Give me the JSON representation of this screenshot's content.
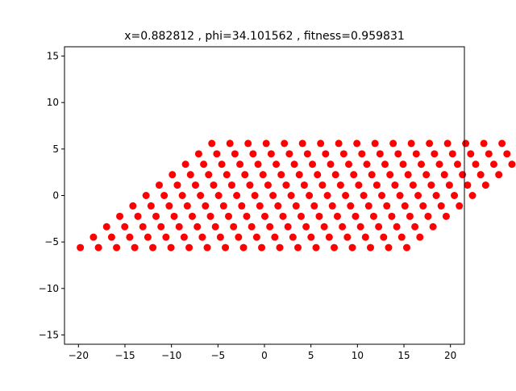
{
  "chart_data": {
    "type": "scatter",
    "title": "x=0.882812 , phi=34.101562 , fitness=0.959831",
    "xlabel": "",
    "ylabel": "",
    "xlim": [
      -21.5,
      21.5
    ],
    "ylim": [
      -16,
      16
    ],
    "xticks": [
      -20,
      -15,
      -10,
      -5,
      0,
      5,
      10,
      15,
      20
    ],
    "yticks": [
      -15,
      -10,
      -5,
      0,
      5,
      10,
      15
    ],
    "grid": false,
    "legend": "none",
    "lattice": {
      "rows": 11,
      "cols": 19,
      "y_start": -5.6,
      "y_step": 1.12,
      "x_col_step": 1.414,
      "x_row_shift": 1.414,
      "x_origin": -19.8,
      "description_note": ""
    },
    "colors": {
      "points": "#ff0000",
      "axes": "#000000",
      "background": "#ffffff"
    }
  }
}
